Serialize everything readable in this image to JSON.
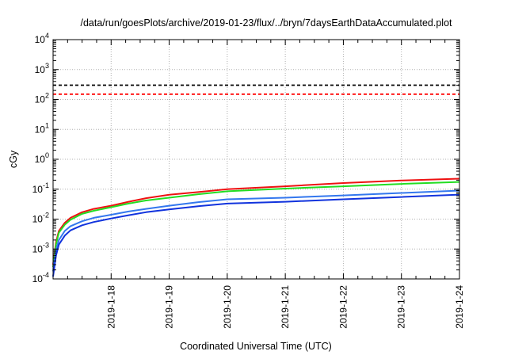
{
  "chart_data": {
    "type": "line",
    "title": "/data/run/goesPlots/archive/2019-01-23/flux/../bryn/7daysEarthDataAccumulated.plot",
    "xlabel": "Coordinated Universal Time (UTC)",
    "ylabel": "cGy",
    "y_scale": "log",
    "ylim": [
      0.0001,
      10000
    ],
    "xlim": [
      "2019-01-17",
      "2019-01-24"
    ],
    "grid": true,
    "x_tick_labels": [
      "2019-1-18",
      "2019-1-19",
      "2019-1-20",
      "2019-1-21",
      "2019-1-22",
      "2019-1-23",
      "2019-1-24"
    ],
    "x_tick_days": [
      1,
      2,
      3,
      4,
      5,
      6,
      7
    ],
    "y_tick_labels": [
      {
        "base": "10",
        "exp": "-4",
        "value": 0.0001
      },
      {
        "base": "10",
        "exp": "-3",
        "value": 0.001
      },
      {
        "base": "10",
        "exp": "-2",
        "value": 0.01
      },
      {
        "base": "10",
        "exp": "-1",
        "value": 0.1
      },
      {
        "base": "10",
        "exp": "0",
        "value": 1
      },
      {
        "base": "10",
        "exp": "1",
        "value": 10
      },
      {
        "base": "10",
        "exp": "2",
        "value": 100
      },
      {
        "base": "10",
        "exp": "3",
        "value": 1000
      },
      {
        "base": "10",
        "exp": "4",
        "value": 10000
      }
    ],
    "thresholds": [
      {
        "value": 300,
        "color": "#000000",
        "style": "dashed"
      },
      {
        "value": 150,
        "color": "#ff0000",
        "style": "dashed"
      }
    ],
    "series": [
      {
        "color": "#ee1111",
        "x_days": [
          0,
          0.05,
          0.1,
          0.2,
          0.3,
          0.5,
          0.7,
          1.0,
          1.3,
          1.6,
          2.0,
          2.5,
          3.0,
          4.0,
          5.0,
          6.0,
          7.0
        ],
        "values": [
          0.0003,
          0.0017,
          0.004,
          0.0075,
          0.011,
          0.017,
          0.022,
          0.028,
          0.038,
          0.05,
          0.065,
          0.08,
          0.1,
          0.125,
          0.16,
          0.195,
          0.225
        ]
      },
      {
        "color": "#22dd22",
        "x_days": [
          0,
          0.05,
          0.1,
          0.2,
          0.3,
          0.5,
          0.7,
          1.0,
          1.3,
          1.6,
          2.0,
          2.5,
          3.0,
          4.0,
          5.0,
          6.0,
          7.0
        ],
        "values": [
          0.00025,
          0.0014,
          0.0035,
          0.0065,
          0.0095,
          0.015,
          0.019,
          0.025,
          0.033,
          0.042,
          0.052,
          0.068,
          0.085,
          0.105,
          0.125,
          0.15,
          0.175
        ]
      },
      {
        "color": "#3377ee",
        "x_days": [
          0,
          0.05,
          0.1,
          0.2,
          0.3,
          0.5,
          0.7,
          1.0,
          1.3,
          1.6,
          2.0,
          2.5,
          3.0,
          4.0,
          5.0,
          6.0,
          7.0
        ],
        "values": [
          0.00018,
          0.0009,
          0.002,
          0.004,
          0.0058,
          0.0085,
          0.011,
          0.014,
          0.018,
          0.022,
          0.028,
          0.037,
          0.046,
          0.052,
          0.062,
          0.075,
          0.09
        ]
      },
      {
        "color": "#1133dd",
        "x_days": [
          0,
          0.05,
          0.1,
          0.2,
          0.3,
          0.5,
          0.7,
          1.0,
          1.3,
          1.6,
          2.0,
          2.5,
          3.0,
          4.0,
          5.0,
          6.0,
          7.0
        ],
        "values": [
          0.00012,
          0.0006,
          0.0014,
          0.0028,
          0.0042,
          0.0062,
          0.008,
          0.0105,
          0.0135,
          0.017,
          0.021,
          0.027,
          0.033,
          0.038,
          0.046,
          0.055,
          0.066
        ]
      }
    ]
  }
}
